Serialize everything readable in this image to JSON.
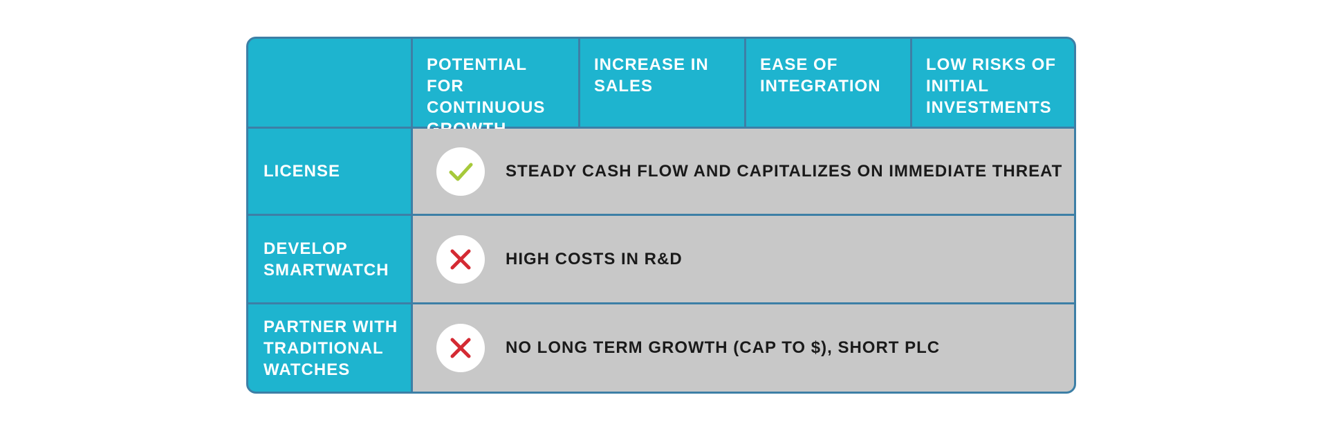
{
  "table": {
    "headers": [
      "",
      "POTENTIAL FOR CONTINUOUS GROWTH",
      "INCREASE IN SALES",
      "EASE OF INTEGRATION",
      "LOW RISKS OF INITIAL INVESTMENTS"
    ],
    "rows": [
      {
        "label": "LICENSE",
        "icon": "check-icon",
        "text": "STEADY CASH FLOW AND CAPITALIZES ON IMMEDIATE THREAT"
      },
      {
        "label": "DEVELOP SMARTWATCH",
        "icon": "cross-icon",
        "text": "HIGH COSTS IN R&D"
      },
      {
        "label": "PARTNER WITH TRADITIONAL WATCHES",
        "icon": "cross-icon",
        "text": "NO LONG TERM GROWTH (CAP TO $), SHORT PLC"
      }
    ]
  },
  "colors": {
    "header_bg": "#1eb4cf",
    "border": "#3d7fa6",
    "row_bg": "#c8c8c8",
    "check": "#a6c93a",
    "cross": "#d42a33"
  }
}
